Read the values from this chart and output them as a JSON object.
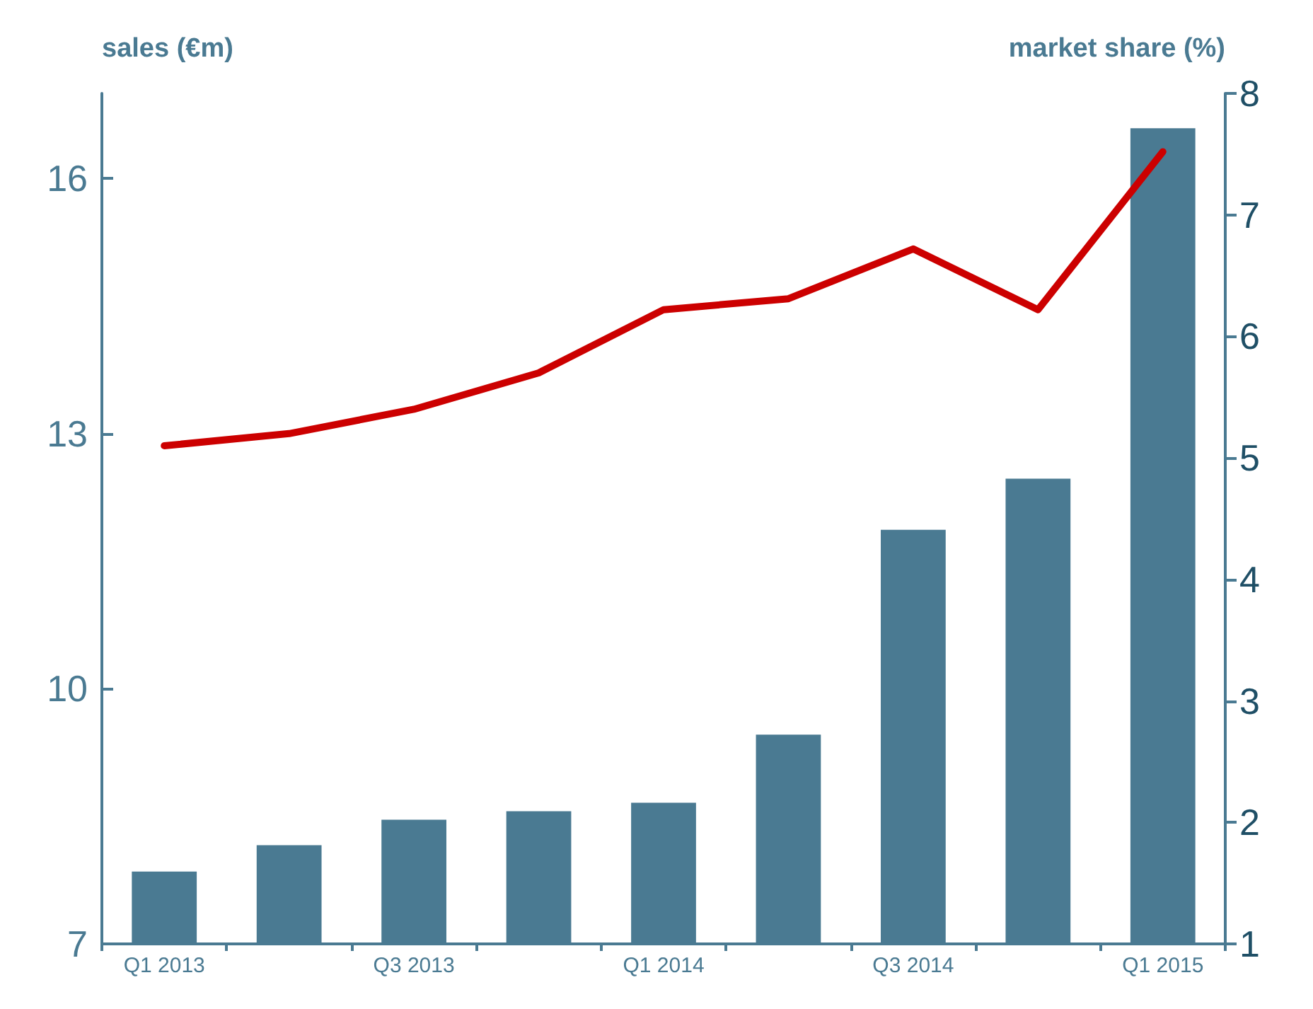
{
  "chart_data": {
    "type": "bar",
    "ylabel": "sales (€m)",
    "y2label": "market share (%)",
    "categories": [
      "Q1 2013",
      null,
      "Q3 2013",
      null,
      "Q1 2014",
      null,
      "Q3 2014",
      null,
      "Q1 2015"
    ],
    "series": [
      {
        "color": "#4a7a92",
        "values": [
          7.85,
          8.16,
          8.46,
          8.56,
          8.66,
          9.46,
          11.87,
          12.47,
          16.59
        ]
      },
      {
        "type": "line",
        "axis": "y2",
        "color": "#cc0000",
        "values": [
          5.1,
          5.2,
          5.4,
          5.7,
          6.22,
          6.31,
          6.72,
          6.22,
          7.52
        ]
      }
    ],
    "ylim": [
      7,
      17
    ],
    "yticks": [
      7,
      10,
      13,
      16
    ],
    "y2lim": [
      1,
      8
    ],
    "y2ticks": [
      1,
      2,
      3,
      4,
      5,
      6,
      7,
      8
    ],
    "grid": false
  }
}
